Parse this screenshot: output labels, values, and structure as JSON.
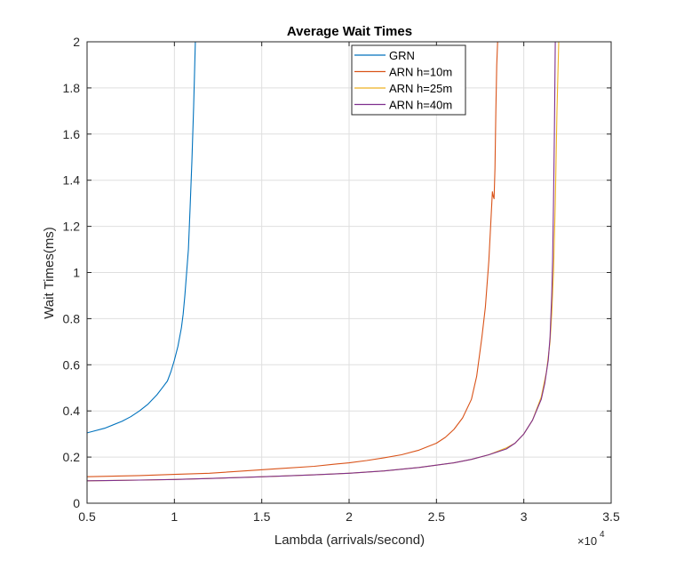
{
  "chart_data": {
    "type": "line",
    "title": "Average Wait Times",
    "xlabel": "Lambda (arrivals/second)",
    "ylabel": "Wait Times(ms)",
    "x_exponent_label": "×10",
    "x_exponent_power": "4",
    "xlim": [
      5000,
      35000
    ],
    "ylim": [
      0,
      2
    ],
    "x_ticks": [
      5000,
      10000,
      15000,
      20000,
      25000,
      30000,
      35000
    ],
    "x_tick_labels": [
      "0.5",
      "1",
      "1.5",
      "2",
      "2.5",
      "3",
      "3.5"
    ],
    "y_ticks": [
      0,
      0.2,
      0.4,
      0.6,
      0.8,
      1,
      1.2,
      1.4,
      1.6,
      1.8,
      2
    ],
    "y_tick_labels": [
      "0",
      "0.2",
      "0.4",
      "0.6",
      "0.8",
      "1",
      "1.2",
      "1.4",
      "1.6",
      "1.8",
      "2"
    ],
    "grid": true,
    "legend_position": "top-center",
    "series": [
      {
        "name": "GRN",
        "color": "#0072BD",
        "x": [
          5000,
          6000,
          7000,
          7500,
          8000,
          8500,
          9000,
          9300,
          9600,
          9800,
          10000,
          10200,
          10400,
          10500,
          10600,
          10700,
          10800,
          10900,
          11000,
          11100,
          11150,
          11200
        ],
        "y": [
          0.305,
          0.325,
          0.355,
          0.375,
          0.4,
          0.43,
          0.47,
          0.5,
          0.53,
          0.57,
          0.62,
          0.68,
          0.76,
          0.82,
          0.9,
          1.0,
          1.1,
          1.28,
          1.48,
          1.72,
          1.85,
          2.0
        ]
      },
      {
        "name": "ARN h=10m",
        "color": "#D95319",
        "x": [
          5000,
          8000,
          10000,
          12000,
          14000,
          16000,
          18000,
          19000,
          20000,
          21000,
          22000,
          23000,
          24000,
          24500,
          25000,
          25500,
          26000,
          26500,
          27000,
          27300,
          27600,
          27800,
          28000,
          28100,
          28200,
          28250,
          28300,
          28350,
          28400,
          28450,
          28500
        ],
        "y": [
          0.115,
          0.12,
          0.125,
          0.13,
          0.14,
          0.15,
          0.16,
          0.168,
          0.175,
          0.185,
          0.197,
          0.21,
          0.23,
          0.245,
          0.26,
          0.285,
          0.32,
          0.37,
          0.45,
          0.55,
          0.72,
          0.85,
          1.05,
          1.2,
          1.35,
          1.33,
          1.32,
          1.45,
          1.7,
          1.9,
          2.0
        ]
      },
      {
        "name": "ARN h=25m",
        "color": "#EDB120",
        "x": [
          5000,
          8000,
          10000,
          12000,
          14000,
          16000,
          18000,
          20000,
          22000,
          24000,
          25000,
          26000,
          27000,
          28000,
          29000,
          29500,
          30000,
          30500,
          31000,
          31300,
          31500,
          31600,
          31700,
          31800,
          31900,
          31950,
          32000
        ],
        "y": [
          0.097,
          0.1,
          0.103,
          0.107,
          0.112,
          0.117,
          0.123,
          0.13,
          0.14,
          0.155,
          0.165,
          0.175,
          0.19,
          0.21,
          0.24,
          0.26,
          0.3,
          0.36,
          0.46,
          0.57,
          0.7,
          0.82,
          1.0,
          1.3,
          1.7,
          1.85,
          2.0
        ]
      },
      {
        "name": "ARN h=40m",
        "color": "#7E2F8E",
        "x": [
          5000,
          8000,
          10000,
          12000,
          14000,
          16000,
          18000,
          20000,
          22000,
          24000,
          25000,
          26000,
          27000,
          28000,
          29000,
          29500,
          30000,
          30500,
          31000,
          31200,
          31400,
          31500,
          31600,
          31650,
          31700,
          31750,
          31800
        ],
        "y": [
          0.097,
          0.1,
          0.103,
          0.107,
          0.112,
          0.117,
          0.123,
          0.13,
          0.14,
          0.155,
          0.165,
          0.175,
          0.19,
          0.21,
          0.235,
          0.26,
          0.3,
          0.36,
          0.45,
          0.52,
          0.62,
          0.72,
          0.9,
          1.05,
          1.3,
          1.6,
          2.0
        ]
      }
    ]
  }
}
